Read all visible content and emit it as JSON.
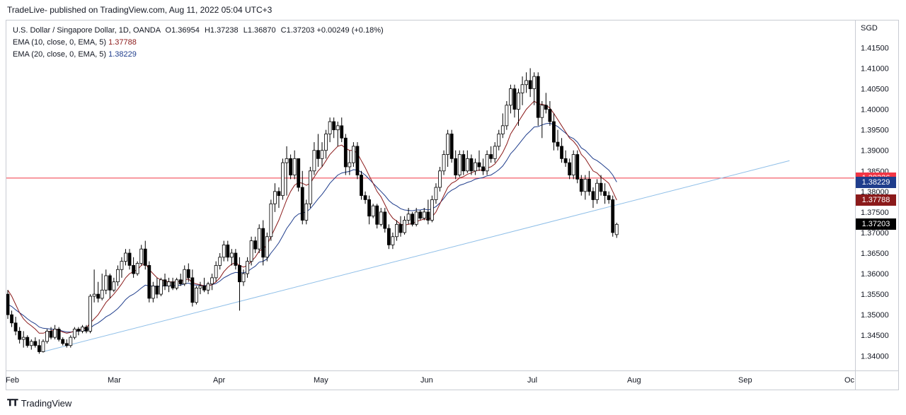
{
  "header": {
    "published": "TradeLive- published on TradingView.com, Aug 11, 2022 05:04 UTC+3"
  },
  "legend": {
    "symbol": "U.S. Dollar / Singapore Dollar, 1D, OANDA",
    "open_label": "O",
    "open": "1.36954",
    "high_label": "H",
    "high": "1.37238",
    "low_label": "L",
    "low": "1.36870",
    "close_label": "C",
    "close": "1.37203",
    "change": "+0.00249 (+0.18%)",
    "ema10_label": "EMA (10, close, 0, EMA, 5)",
    "ema10_value": "1.37788",
    "ema20_label": "EMA (20, close, 0, EMA, 5)",
    "ema20_value": "1.38229"
  },
  "axis": {
    "currency": "SGD"
  },
  "footer": {
    "brand": "TradingView"
  },
  "chart_data": {
    "type": "candlestick",
    "price_ticks": [
      1.34,
      1.345,
      1.35,
      1.355,
      1.36,
      1.365,
      1.37,
      1.375,
      1.38,
      1.385,
      1.39,
      1.395,
      1.4,
      1.405,
      1.41,
      1.415
    ],
    "price_tick_labels": [
      "1.34000",
      "1.34500",
      "1.35000",
      "1.35500",
      "1.36000",
      "1.36500",
      "1.37000",
      "1.37500",
      "1.38000",
      "1.38500",
      "1.39000",
      "1.39500",
      "1.40000",
      "1.40500",
      "1.41000",
      "1.41500"
    ],
    "ylim": [
      1.3385,
      1.418
    ],
    "time_labels": [
      "Feb",
      "Mar",
      "Apr",
      "May",
      "Jun",
      "Jul",
      "Aug",
      "Sep",
      "Oc"
    ],
    "price_badges": [
      {
        "value": 1.38326,
        "label": "1.38326",
        "color": "#f23645"
      },
      {
        "value": 1.38229,
        "label": "1.38229",
        "color": "#1f3d8c"
      },
      {
        "value": 1.37788,
        "label": "1.37788",
        "color": "#8b1a1a"
      },
      {
        "value": 1.37203,
        "label": "1.37203",
        "color": "#000000"
      }
    ],
    "horizontal_line": 1.38326,
    "trendline": {
      "start_bar": 9,
      "start_price": 1.341,
      "end_bar": 199,
      "end_price": 1.3875
    },
    "colors": {
      "up": "#ffffff",
      "down": "#000000",
      "ema10": "#8b1a1a",
      "ema20": "#1f3d8c",
      "hline": "#f23645",
      "trend": "#8fbfe8"
    },
    "candles": [
      [
        1.355,
        1.356,
        1.349,
        1.35
      ],
      [
        1.35,
        1.351,
        1.347,
        1.348
      ],
      [
        1.348,
        1.3495,
        1.345,
        1.346
      ],
      [
        1.346,
        1.347,
        1.343,
        1.344
      ],
      [
        1.344,
        1.346,
        1.342,
        1.3445
      ],
      [
        1.3445,
        1.345,
        1.342,
        1.3425
      ],
      [
        1.3425,
        1.344,
        1.3415,
        1.3435
      ],
      [
        1.3435,
        1.3445,
        1.342,
        1.3425
      ],
      [
        1.3425,
        1.344,
        1.3405,
        1.341
      ],
      [
        1.341,
        1.344,
        1.3408,
        1.3435
      ],
      [
        1.3435,
        1.3465,
        1.343,
        1.346
      ],
      [
        1.346,
        1.347,
        1.344,
        1.3445
      ],
      [
        1.3445,
        1.3475,
        1.344,
        1.3465
      ],
      [
        1.3465,
        1.347,
        1.3435,
        1.344
      ],
      [
        1.344,
        1.3445,
        1.3425,
        1.343
      ],
      [
        1.343,
        1.344,
        1.342,
        1.3425
      ],
      [
        1.3425,
        1.345,
        1.342,
        1.3445
      ],
      [
        1.3445,
        1.347,
        1.344,
        1.3465
      ],
      [
        1.3465,
        1.347,
        1.345,
        1.346
      ],
      [
        1.346,
        1.3475,
        1.3455,
        1.347
      ],
      [
        1.347,
        1.3475,
        1.3455,
        1.346
      ],
      [
        1.346,
        1.355,
        1.3455,
        1.3545
      ],
      [
        1.3545,
        1.361,
        1.353,
        1.355
      ],
      [
        1.355,
        1.358,
        1.353,
        1.354
      ],
      [
        1.354,
        1.36,
        1.3535,
        1.356
      ],
      [
        1.356,
        1.361,
        1.355,
        1.3595
      ],
      [
        1.3595,
        1.36,
        1.354,
        1.356
      ],
      [
        1.356,
        1.359,
        1.3555,
        1.358
      ],
      [
        1.358,
        1.362,
        1.357,
        1.361
      ],
      [
        1.361,
        1.364,
        1.359,
        1.363
      ],
      [
        1.363,
        1.366,
        1.362,
        1.365
      ],
      [
        1.365,
        1.366,
        1.361,
        1.362
      ],
      [
        1.362,
        1.364,
        1.359,
        1.36
      ],
      [
        1.36,
        1.363,
        1.3595,
        1.3625
      ],
      [
        1.3625,
        1.367,
        1.362,
        1.366
      ],
      [
        1.366,
        1.368,
        1.361,
        1.362
      ],
      [
        1.362,
        1.363,
        1.353,
        1.354
      ],
      [
        1.354,
        1.358,
        1.353,
        1.357
      ],
      [
        1.357,
        1.359,
        1.354,
        1.355
      ],
      [
        1.355,
        1.359,
        1.3545,
        1.3585
      ],
      [
        1.3585,
        1.36,
        1.356,
        1.357
      ],
      [
        1.357,
        1.359,
        1.3555,
        1.358
      ],
      [
        1.358,
        1.359,
        1.356,
        1.3565
      ],
      [
        1.3565,
        1.359,
        1.356,
        1.3585
      ],
      [
        1.3585,
        1.36,
        1.357,
        1.3575
      ],
      [
        1.3575,
        1.362,
        1.357,
        1.361
      ],
      [
        1.361,
        1.3625,
        1.358,
        1.359
      ],
      [
        1.359,
        1.361,
        1.352,
        1.353
      ],
      [
        1.353,
        1.357,
        1.3525,
        1.3565
      ],
      [
        1.3565,
        1.358,
        1.355,
        1.357
      ],
      [
        1.357,
        1.359,
        1.3555,
        1.356
      ],
      [
        1.356,
        1.358,
        1.355,
        1.3575
      ],
      [
        1.3575,
        1.36,
        1.356,
        1.359
      ],
      [
        1.359,
        1.363,
        1.358,
        1.362
      ],
      [
        1.362,
        1.365,
        1.361,
        1.364
      ],
      [
        1.364,
        1.368,
        1.363,
        1.367
      ],
      [
        1.367,
        1.368,
        1.363,
        1.364
      ],
      [
        1.364,
        1.366,
        1.362,
        1.365
      ],
      [
        1.365,
        1.366,
        1.361,
        1.362
      ],
      [
        1.362,
        1.364,
        1.351,
        1.358
      ],
      [
        1.358,
        1.361,
        1.357,
        1.36
      ],
      [
        1.36,
        1.364,
        1.359,
        1.363
      ],
      [
        1.363,
        1.369,
        1.362,
        1.368
      ],
      [
        1.368,
        1.369,
        1.365,
        1.366
      ],
      [
        1.366,
        1.372,
        1.365,
        1.371
      ],
      [
        1.371,
        1.373,
        1.362,
        1.364
      ],
      [
        1.364,
        1.37,
        1.363,
        1.369
      ],
      [
        1.369,
        1.378,
        1.368,
        1.377
      ],
      [
        1.377,
        1.382,
        1.375,
        1.38
      ],
      [
        1.38,
        1.381,
        1.376,
        1.379
      ],
      [
        1.379,
        1.388,
        1.378,
        1.387
      ],
      [
        1.387,
        1.391,
        1.379,
        1.388
      ],
      [
        1.388,
        1.389,
        1.383,
        1.384
      ],
      [
        1.384,
        1.39,
        1.383,
        1.388
      ],
      [
        1.388,
        1.388,
        1.38,
        1.381
      ],
      [
        1.381,
        1.385,
        1.372,
        1.373
      ],
      [
        1.373,
        1.378,
        1.372,
        1.377
      ],
      [
        1.377,
        1.386,
        1.376,
        1.385
      ],
      [
        1.385,
        1.392,
        1.384,
        1.39
      ],
      [
        1.39,
        1.394,
        1.386,
        1.388
      ],
      [
        1.388,
        1.392,
        1.386,
        1.39
      ],
      [
        1.39,
        1.395,
        1.388,
        1.394
      ],
      [
        1.394,
        1.398,
        1.392,
        1.397
      ],
      [
        1.397,
        1.398,
        1.393,
        1.395
      ],
      [
        1.395,
        1.397,
        1.391,
        1.396
      ],
      [
        1.396,
        1.398,
        1.392,
        1.393
      ],
      [
        1.393,
        1.394,
        1.384,
        1.386
      ],
      [
        1.386,
        1.39,
        1.384,
        1.387
      ],
      [
        1.387,
        1.392,
        1.386,
        1.391
      ],
      [
        1.391,
        1.392,
        1.383,
        1.384
      ],
      [
        1.384,
        1.385,
        1.378,
        1.379
      ],
      [
        1.379,
        1.38,
        1.377,
        1.378
      ],
      [
        1.378,
        1.379,
        1.372,
        1.374
      ],
      [
        1.374,
        1.377,
        1.3735,
        1.3765
      ],
      [
        1.3765,
        1.377,
        1.371,
        1.372
      ],
      [
        1.372,
        1.376,
        1.3715,
        1.375
      ],
      [
        1.375,
        1.376,
        1.37,
        1.371
      ],
      [
        1.371,
        1.372,
        1.366,
        1.367
      ],
      [
        1.367,
        1.37,
        1.366,
        1.369
      ],
      [
        1.369,
        1.373,
        1.368,
        1.372
      ],
      [
        1.372,
        1.374,
        1.369,
        1.37
      ],
      [
        1.37,
        1.374,
        1.3695,
        1.373
      ],
      [
        1.373,
        1.376,
        1.372,
        1.3745
      ],
      [
        1.3745,
        1.375,
        1.3715,
        1.372
      ],
      [
        1.372,
        1.376,
        1.3715,
        1.375
      ],
      [
        1.375,
        1.3755,
        1.373,
        1.3735
      ],
      [
        1.3735,
        1.376,
        1.373,
        1.375
      ],
      [
        1.375,
        1.378,
        1.372,
        1.373
      ],
      [
        1.373,
        1.379,
        1.3725,
        1.378
      ],
      [
        1.378,
        1.382,
        1.377,
        1.381
      ],
      [
        1.381,
        1.386,
        1.38,
        1.385
      ],
      [
        1.385,
        1.39,
        1.384,
        1.389
      ],
      [
        1.389,
        1.395,
        1.386,
        1.394
      ],
      [
        1.394,
        1.395,
        1.387,
        1.388
      ],
      [
        1.388,
        1.39,
        1.383,
        1.384
      ],
      [
        1.384,
        1.39,
        1.3835,
        1.389
      ],
      [
        1.389,
        1.39,
        1.384,
        1.385
      ],
      [
        1.385,
        1.39,
        1.3845,
        1.388
      ],
      [
        1.388,
        1.389,
        1.384,
        1.385
      ],
      [
        1.385,
        1.388,
        1.384,
        1.387
      ],
      [
        1.387,
        1.39,
        1.385,
        1.386
      ],
      [
        1.386,
        1.388,
        1.384,
        1.385
      ],
      [
        1.385,
        1.39,
        1.384,
        1.389
      ],
      [
        1.389,
        1.391,
        1.387,
        1.388
      ],
      [
        1.388,
        1.392,
        1.387,
        1.391
      ],
      [
        1.391,
        1.395,
        1.39,
        1.394
      ],
      [
        1.394,
        1.399,
        1.393,
        1.396
      ],
      [
        1.396,
        1.402,
        1.395,
        1.401
      ],
      [
        1.401,
        1.406,
        1.399,
        1.405
      ],
      [
        1.405,
        1.406,
        1.398,
        1.4
      ],
      [
        1.4,
        1.405,
        1.396,
        1.404
      ],
      [
        1.404,
        1.408,
        1.401,
        1.406
      ],
      [
        1.406,
        1.409,
        1.404,
        1.407
      ],
      [
        1.407,
        1.41,
        1.403,
        1.405
      ],
      [
        1.405,
        1.409,
        1.401,
        1.408
      ],
      [
        1.408,
        1.409,
        1.396,
        1.398
      ],
      [
        1.398,
        1.402,
        1.393,
        1.401
      ],
      [
        1.401,
        1.404,
        1.399,
        1.4
      ],
      [
        1.4,
        1.402,
        1.396,
        1.397
      ],
      [
        1.397,
        1.399,
        1.39,
        1.392
      ],
      [
        1.392,
        1.395,
        1.39,
        1.391
      ],
      [
        1.391,
        1.393,
        1.387,
        1.388
      ],
      [
        1.388,
        1.39,
        1.386,
        1.387
      ],
      [
        1.387,
        1.388,
        1.383,
        1.384
      ],
      [
        1.384,
        1.39,
        1.383,
        1.389
      ],
      [
        1.389,
        1.39,
        1.382,
        1.383
      ],
      [
        1.383,
        1.384,
        1.379,
        1.38
      ],
      [
        1.38,
        1.384,
        1.378,
        1.383
      ],
      [
        1.383,
        1.385,
        1.379,
        1.38
      ],
      [
        1.38,
        1.381,
        1.376,
        1.378
      ],
      [
        1.378,
        1.383,
        1.377,
        1.382
      ],
      [
        1.382,
        1.384,
        1.379,
        1.38
      ],
      [
        1.38,
        1.382,
        1.377,
        1.379
      ],
      [
        1.379,
        1.38,
        1.377,
        1.378
      ],
      [
        1.378,
        1.379,
        1.369,
        1.37
      ],
      [
        1.3695,
        1.3724,
        1.3687,
        1.372
      ]
    ],
    "ema10": [
      1.356,
      1.3545,
      1.3525,
      1.3505,
      1.349,
      1.348,
      1.3473,
      1.3465,
      1.3455,
      1.3455,
      1.3458,
      1.346,
      1.3465,
      1.3462,
      1.3458,
      1.3455,
      1.3457,
      1.346,
      1.3462,
      1.3466,
      1.3468,
      1.348,
      1.349,
      1.35,
      1.3515,
      1.353,
      1.354,
      1.355,
      1.3562,
      1.3575,
      1.359,
      1.36,
      1.3605,
      1.361,
      1.362,
      1.3625,
      1.361,
      1.36,
      1.359,
      1.3585,
      1.3582,
      1.358,
      1.358,
      1.358,
      1.3581,
      1.3585,
      1.3587,
      1.3578,
      1.3575,
      1.3573,
      1.357,
      1.357,
      1.3573,
      1.358,
      1.359,
      1.3605,
      1.3615,
      1.3623,
      1.3627,
      1.362,
      1.3616,
      1.362,
      1.363,
      1.364,
      1.3655,
      1.366,
      1.367,
      1.369,
      1.371,
      1.373,
      1.3755,
      1.378,
      1.38,
      1.3815,
      1.3822,
      1.382,
      1.3815,
      1.382,
      1.3835,
      1.385,
      1.386,
      1.3875,
      1.389,
      1.39,
      1.391,
      1.3913,
      1.3905,
      1.39,
      1.39,
      1.3893,
      1.3875,
      1.3858,
      1.3838,
      1.382,
      1.38,
      1.3787,
      1.3768,
      1.3748,
      1.3735,
      1.3728,
      1.372,
      1.3718,
      1.372,
      1.3722,
      1.3727,
      1.373,
      1.3733,
      1.3731,
      1.3738,
      1.375,
      1.377,
      1.379,
      1.381,
      1.382,
      1.3825,
      1.3833,
      1.3836,
      1.3842,
      1.3845,
      1.385,
      1.3852,
      1.3852,
      1.3857,
      1.386,
      1.3867,
      1.388,
      1.3895,
      1.3915,
      1.394,
      1.3955,
      1.397,
      1.3985,
      1.4,
      1.401,
      1.402,
      1.4013,
      1.4012,
      1.401,
      1.4003,
      1.399,
      1.3975,
      1.396,
      1.3945,
      1.393,
      1.3922,
      1.391,
      1.389,
      1.388,
      1.3865,
      1.385,
      1.3845,
      1.3835,
      1.3828,
      1.382,
      1.38,
      1.3779
    ],
    "ema20": [
      1.3525,
      1.352,
      1.3512,
      1.3505,
      1.3498,
      1.349,
      1.3483,
      1.3478,
      1.347,
      1.3467,
      1.3466,
      1.3465,
      1.3465,
      1.3463,
      1.346,
      1.3458,
      1.3458,
      1.3459,
      1.346,
      1.3461,
      1.3462,
      1.3468,
      1.3475,
      1.348,
      1.3487,
      1.3495,
      1.35,
      1.3507,
      1.3515,
      1.3525,
      1.3537,
      1.3545,
      1.355,
      1.3557,
      1.3565,
      1.3572,
      1.357,
      1.357,
      1.3568,
      1.357,
      1.357,
      1.357,
      1.357,
      1.3571,
      1.3572,
      1.3575,
      1.3577,
      1.3573,
      1.3572,
      1.3572,
      1.3571,
      1.3571,
      1.3573,
      1.3576,
      1.3582,
      1.359,
      1.3595,
      1.36,
      1.3603,
      1.3602,
      1.3602,
      1.3605,
      1.3612,
      1.3618,
      1.3628,
      1.363,
      1.3636,
      1.365,
      1.3662,
      1.3675,
      1.3692,
      1.371,
      1.3723,
      1.3737,
      1.3745,
      1.3748,
      1.375,
      1.3758,
      1.377,
      1.3782,
      1.3793,
      1.3806,
      1.382,
      1.383,
      1.384,
      1.3845,
      1.3847,
      1.3849,
      1.3853,
      1.3852,
      1.3847,
      1.384,
      1.383,
      1.382,
      1.381,
      1.38,
      1.379,
      1.3778,
      1.377,
      1.3765,
      1.3758,
      1.3755,
      1.3754,
      1.3753,
      1.3755,
      1.3755,
      1.3757,
      1.3755,
      1.3758,
      1.3763,
      1.3772,
      1.3783,
      1.3796,
      1.3803,
      1.3808,
      1.3815,
      1.3818,
      1.3822,
      1.3825,
      1.383,
      1.3832,
      1.3834,
      1.3838,
      1.384,
      1.3846,
      1.3853,
      1.3862,
      1.3876,
      1.3892,
      1.3902,
      1.3914,
      1.3926,
      1.3938,
      1.3947,
      1.3957,
      1.3958,
      1.3962,
      1.3965,
      1.3966,
      1.3963,
      1.3958,
      1.395,
      1.3942,
      1.3933,
      1.3929,
      1.392,
      1.3906,
      1.39,
      1.389,
      1.388,
      1.3875,
      1.3868,
      1.386,
      1.3852,
      1.384,
      1.3823
    ]
  }
}
